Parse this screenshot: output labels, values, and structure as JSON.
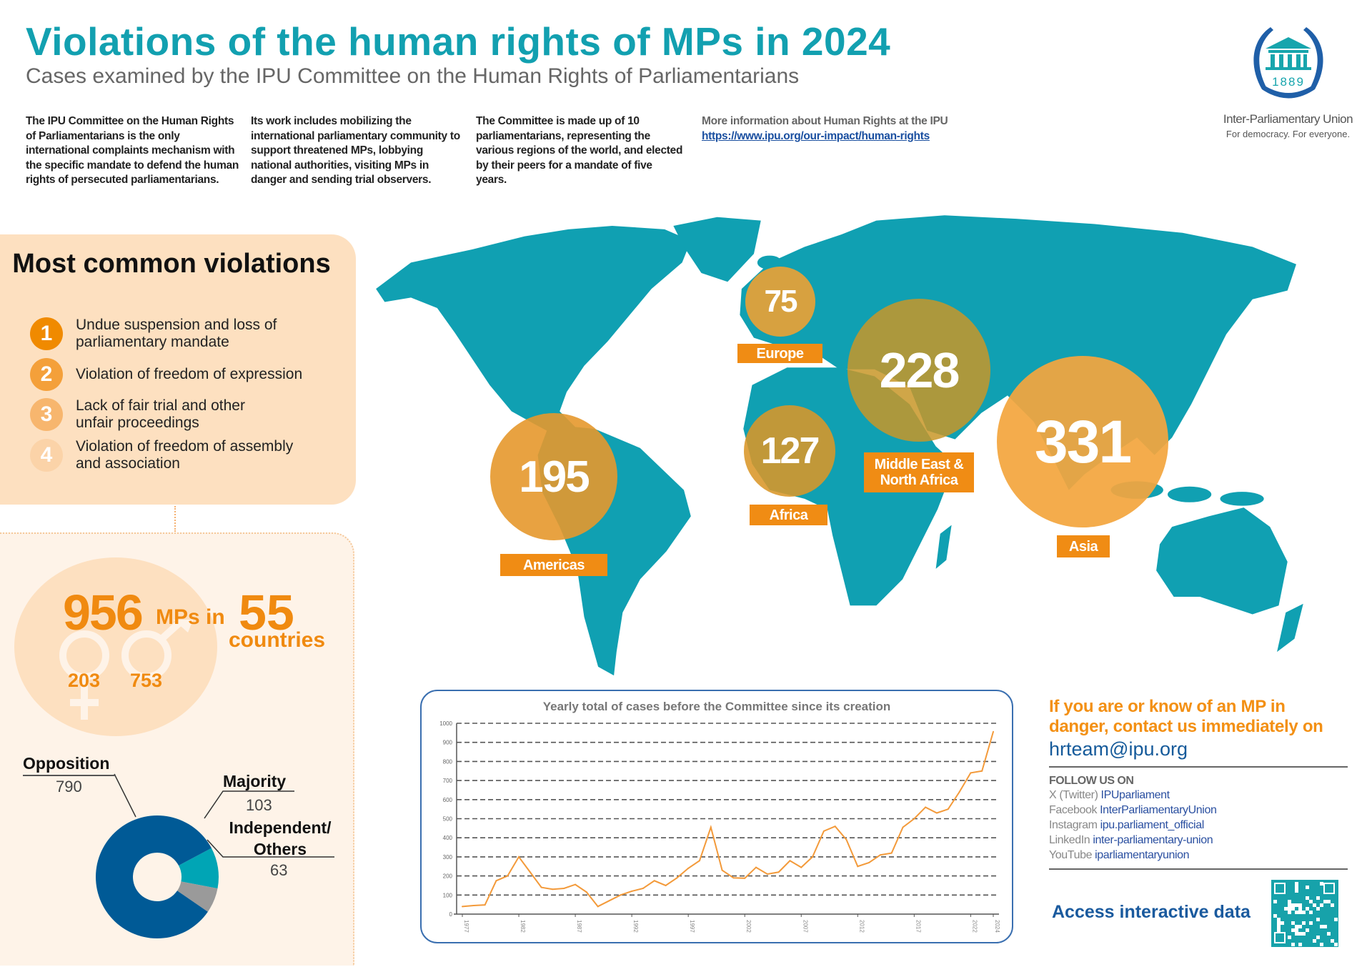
{
  "header": {
    "title": "Violations of the human rights of MPs in 2024",
    "subtitle": "Cases examined by the IPU Committee on the Human Rights of Parliamentarians"
  },
  "intro": [
    "The IPU Committee on the Human Rights of Parliamentarians is the only international complaints mechanism with the specific mandate to defend the human rights of persecuted parliamentarians.",
    "Its work includes mobilizing the international parliamentary community to support threatened MPs, lobbying national authorities, visiting MPs in danger and sending trial observers.",
    "The Committee is made up of 10 parliamentarians, representing the various regions of the world, and elected by their peers for a mandate of five years."
  ],
  "more_info": {
    "label": "More information about Human Rights at the IPU",
    "link": "https://www.ipu.org/our-impact/human-rights"
  },
  "logo": {
    "year": "1889",
    "name": "Inter-Parliamentary Union",
    "tagline": "For democracy. For everyone."
  },
  "violations": {
    "title": "Most common violations",
    "items": [
      {
        "num": "1",
        "text": "Undue suspension and loss of parliamentary mandate"
      },
      {
        "num": "2",
        "text": "Violation of freedom of expression"
      },
      {
        "num": "3",
        "text": "Lack of fair trial and other unfair proceedings"
      },
      {
        "num": "4",
        "text": "Violation of freedom of assembly and association"
      }
    ]
  },
  "stats": {
    "mps": "956",
    "mps_label": "MPs in",
    "countries": "55",
    "countries_label": "countries",
    "women": "203",
    "men": "753"
  },
  "regions": [
    {
      "name": "Europe",
      "value": "75"
    },
    {
      "name": "Middle East & North Africa",
      "value": "228"
    },
    {
      "name": "Africa",
      "value": "127"
    },
    {
      "name": "Americas",
      "value": "195"
    },
    {
      "name": "Asia",
      "value": "331"
    }
  ],
  "colors": {
    "teal": "#12a0b0",
    "orange": "#f08c14",
    "blue": "#005a96",
    "majority": "#00a5b5",
    "others": "#9a9a9a"
  },
  "chart_data": [
    {
      "type": "line",
      "title": "Yearly total of cases before the Committee since its creation",
      "xlim": [
        1977,
        2024
      ],
      "ylim": [
        0,
        1000
      ],
      "yticks": [
        0,
        100,
        200,
        300,
        400,
        500,
        600,
        700,
        800,
        900,
        1000
      ],
      "xticks": [
        1977,
        1982,
        1987,
        1992,
        1997,
        2002,
        2007,
        2012,
        2017,
        2022,
        2024
      ],
      "grid": true,
      "x": [
        1977,
        1978,
        1979,
        1980,
        1981,
        1982,
        1983,
        1984,
        1985,
        1986,
        1987,
        1988,
        1989,
        1990,
        1991,
        1992,
        1993,
        1994,
        1995,
        1996,
        1997,
        1998,
        1999,
        2000,
        2001,
        2002,
        2003,
        2004,
        2005,
        2006,
        2007,
        2008,
        2009,
        2010,
        2011,
        2012,
        2013,
        2014,
        2015,
        2016,
        2017,
        2018,
        2019,
        2020,
        2021,
        2022,
        2023,
        2024
      ],
      "values": [
        40,
        45,
        48,
        175,
        200,
        300,
        220,
        140,
        130,
        135,
        155,
        115,
        40,
        70,
        100,
        120,
        135,
        175,
        150,
        190,
        240,
        280,
        455,
        230,
        190,
        188,
        245,
        210,
        220,
        280,
        245,
        300,
        435,
        460,
        390,
        250,
        270,
        310,
        320,
        455,
        500,
        560,
        530,
        550,
        640,
        740,
        750,
        956
      ]
    },
    {
      "type": "pie",
      "categories": [
        "Opposition",
        "Majority",
        "Independent/ Others"
      ],
      "values": [
        790,
        103,
        63
      ]
    }
  ],
  "contact": {
    "cta": "If you are or know of an MP in danger, contact us immediately on",
    "email": "hrteam@ipu.org",
    "follow": "FOLLOW US ON",
    "social": [
      {
        "platform": "X (Twitter)",
        "handle": "IPUparliament"
      },
      {
        "platform": "Facebook",
        "handle": "InterParliamentaryUnion"
      },
      {
        "platform": "Instagram",
        "handle": "ipu.parliament_official"
      },
      {
        "platform": "LinkedIn",
        "handle": "inter-parliamentary-union"
      },
      {
        "platform": "YouTube",
        "handle": "iparliamentaryunion"
      }
    ],
    "access": "Access interactive data"
  }
}
